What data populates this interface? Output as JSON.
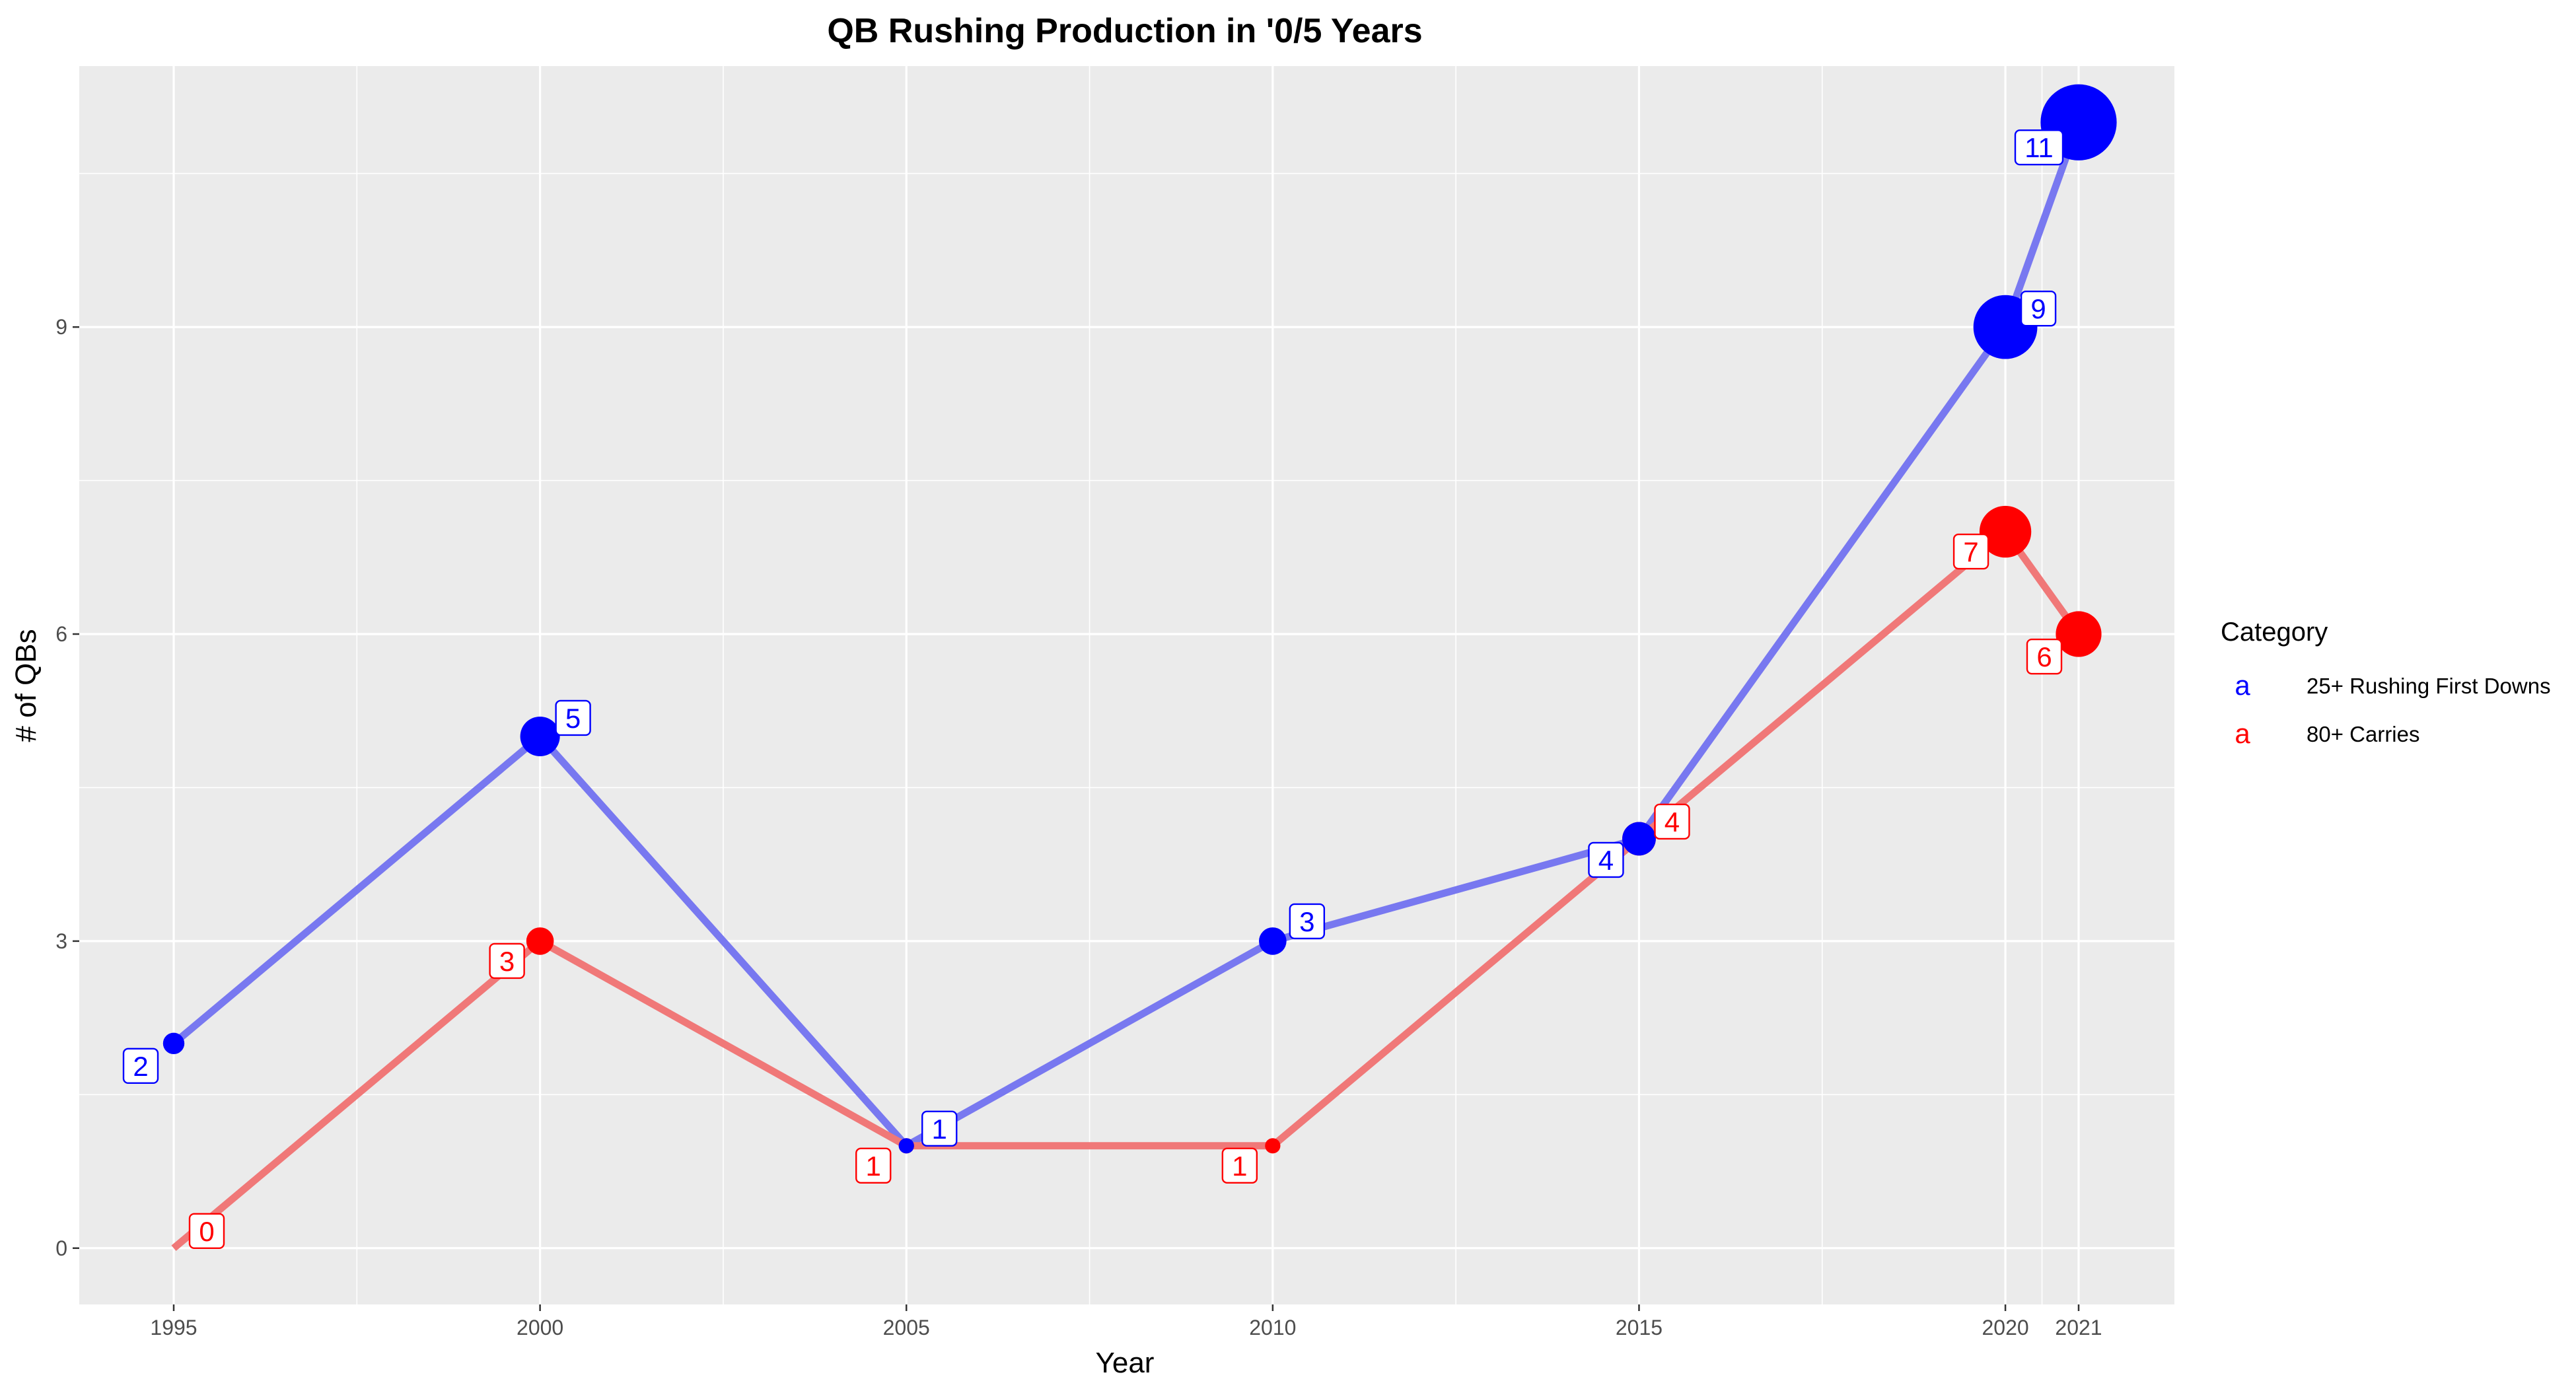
{
  "chart_data": {
    "type": "line",
    "title": "QB Rushing Production in '0/5 Years",
    "xlabel": "Year",
    "ylabel": "# of QBs",
    "x": [
      1995,
      2000,
      2005,
      2010,
      2015,
      2020,
      2021
    ],
    "x_tick_labels": [
      "1995",
      "2000",
      "2005",
      "2010",
      "2015",
      "2020",
      "2021"
    ],
    "ylim": [
      -0.55,
      11.55
    ],
    "y_ticks": [
      0,
      3,
      6,
      9
    ],
    "y_tick_labels": [
      "0",
      "3",
      "6",
      "9"
    ],
    "grid": true,
    "legend": {
      "title": "Category",
      "position": "right",
      "key_glyph": "a"
    },
    "point_size_by_value": true,
    "series": [
      {
        "name": "25+ Rushing First Downs",
        "color": "#0000ff",
        "line_color": "#7878f0",
        "values": [
          2,
          5,
          1,
          3,
          4,
          9,
          11
        ],
        "labels": [
          "2",
          "5",
          "1",
          "3",
          "4",
          "9",
          "11"
        ]
      },
      {
        "name": "80+ Carries",
        "color": "#ff0000",
        "line_color": "#f07878",
        "values": [
          0,
          3,
          1,
          1,
          4,
          7,
          6
        ],
        "labels": [
          "0",
          "3",
          "1",
          "1",
          "4",
          "7",
          "6"
        ]
      }
    ]
  }
}
